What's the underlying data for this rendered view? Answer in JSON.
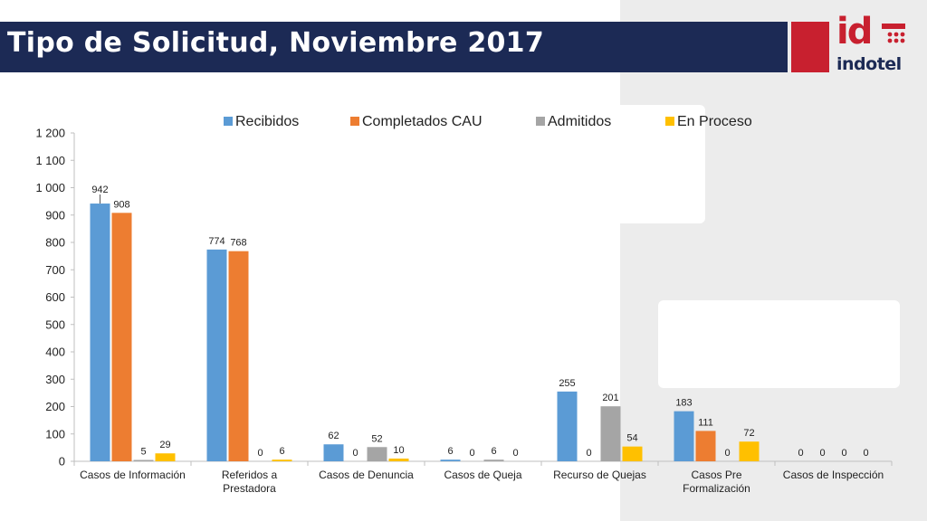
{
  "title": "Tipo de Solicitud, Noviembre 2017",
  "logo": {
    "id_text": "id",
    "wordmark": "indotel"
  },
  "colors": {
    "title_bg": "#1c2a55",
    "brand_red": "#c8202f",
    "recibidos": "#5b9bd5",
    "completados": "#ed7d31",
    "admitidos": "#a5a5a5",
    "en_proceso": "#ffc000"
  },
  "chart_data": {
    "type": "bar",
    "categories": [
      [
        "Casos de Información"
      ],
      [
        "Referidos a",
        "Prestadora"
      ],
      [
        "Casos de Denuncia"
      ],
      [
        "Casos de Queja"
      ],
      [
        "Recurso de Quejas"
      ],
      [
        "Casos Pre",
        "Formalización"
      ],
      [
        "Casos de Inspección"
      ]
    ],
    "series": [
      {
        "name": "Recibidos",
        "values": [
          942,
          774,
          62,
          6,
          255,
          183,
          0
        ]
      },
      {
        "name": "Completados CAU",
        "values": [
          908,
          768,
          0,
          0,
          0,
          111,
          0
        ]
      },
      {
        "name": "Admitidos",
        "values": [
          5,
          0,
          52,
          6,
          201,
          0,
          0
        ]
      },
      {
        "name": "En Proceso",
        "values": [
          29,
          6,
          10,
          0,
          54,
          72,
          0
        ]
      }
    ],
    "yticks": [
      "0",
      "100",
      "200",
      "300",
      "400",
      "500",
      "600",
      "700",
      "800",
      "900",
      "1 000",
      "1 100",
      "1 200"
    ],
    "ylim": [
      0,
      1200
    ],
    "legend_position": "top",
    "grid": false
  }
}
